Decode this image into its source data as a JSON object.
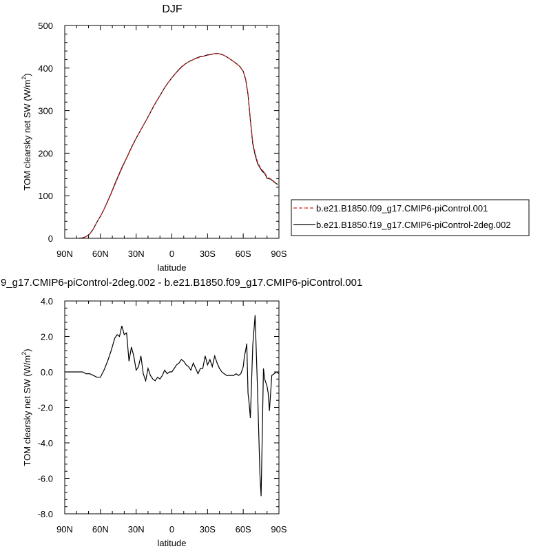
{
  "chart_data": [
    {
      "type": "line",
      "title": "DJF",
      "xlabel": "latitude",
      "ylabel": "TOM clearsky net SW (W/m",
      "ylabel_sup": "2",
      "ylabel_end": ")",
      "xlim": [
        90,
        -90
      ],
      "ylim": [
        0,
        500
      ],
      "xticks": [
        90,
        60,
        30,
        0,
        -30,
        -60,
        -90
      ],
      "xtick_labels": [
        "90N",
        "60N",
        "30N",
        "0",
        "30S",
        "60S",
        "90S"
      ],
      "yticks": [
        0,
        100,
        200,
        300,
        400,
        500
      ],
      "ytick_labels": [
        "0",
        "100",
        "200",
        "300",
        "400",
        "500"
      ],
      "legend": "right",
      "series": [
        {
          "name": "b.e21.B1850.f09_g17.CMIP6-piControl.001",
          "color": "#d62020",
          "dashed": true,
          "x": [
            78,
            75,
            72,
            69,
            66,
            63,
            60,
            57,
            54,
            51,
            48,
            45,
            42,
            39,
            36,
            33,
            30,
            27,
            24,
            21,
            18,
            15,
            12,
            9,
            6,
            3,
            0,
            -3,
            -6,
            -9,
            -12,
            -15,
            -18,
            -21,
            -24,
            -27,
            -30,
            -33,
            -36,
            -39,
            -42,
            -45,
            -48,
            -51,
            -54,
            -57,
            -60,
            -62,
            -64,
            -66,
            -68,
            -70,
            -72,
            -74,
            -76,
            -78,
            -80,
            -83,
            -86,
            -89
          ],
          "y": [
            0,
            1,
            4,
            10,
            22,
            38,
            52,
            68,
            86,
            105,
            125,
            145,
            164,
            182,
            200,
            218,
            235,
            250,
            265,
            280,
            296,
            312,
            326,
            340,
            354,
            366,
            377,
            387,
            396,
            404,
            411,
            416,
            420,
            423,
            426,
            428,
            430,
            432,
            434,
            434,
            432,
            428,
            423,
            417,
            411,
            404,
            392,
            375,
            340,
            280,
            225,
            200,
            180,
            168,
            160,
            155,
            143,
            140,
            133,
            126
          ]
        },
        {
          "name": "b.e21.B1850.f19_g17.CMIP6-piControl-2deg.002",
          "color": "#000000",
          "dashed": false,
          "x": [
            78,
            75,
            72,
            69,
            66,
            63,
            60,
            57,
            54,
            51,
            48,
            45,
            42,
            39,
            36,
            33,
            30,
            27,
            24,
            21,
            18,
            15,
            12,
            9,
            6,
            3,
            0,
            -3,
            -6,
            -9,
            -12,
            -15,
            -18,
            -21,
            -24,
            -27,
            -30,
            -33,
            -36,
            -39,
            -42,
            -45,
            -48,
            -51,
            -54,
            -57,
            -60,
            -62,
            -64,
            -66,
            -68,
            -70,
            -72,
            -74,
            -76,
            -78,
            -80,
            -83,
            -86,
            -89
          ],
          "y": [
            0,
            1,
            4,
            10,
            22,
            38,
            52,
            68,
            87,
            106,
            127,
            147,
            166,
            183,
            201,
            219,
            235,
            250,
            265,
            280,
            296,
            312,
            326,
            340,
            354,
            366,
            377,
            387,
            397,
            405,
            411,
            416,
            420,
            424,
            427,
            428,
            431,
            432,
            434,
            434,
            432,
            428,
            423,
            417,
            411,
            404,
            392,
            374,
            338,
            278,
            222,
            196,
            176,
            166,
            157,
            153,
            141,
            139,
            132,
            126
          ]
        }
      ]
    },
    {
      "type": "line",
      "title": "9_g17.CMIP6-piControl-2deg.002 - b.e21.B1850.f09_g17.CMIP6-piControl.001",
      "xlabel": "latitude",
      "ylabel": "TOM clearsky net SW (W/m",
      "ylabel_sup": "2",
      "ylabel_end": ")",
      "xlim": [
        90,
        -90
      ],
      "ylim": [
        -8,
        4
      ],
      "xticks": [
        90,
        60,
        30,
        0,
        -30,
        -60,
        -90
      ],
      "xtick_labels": [
        "90N",
        "60N",
        "30N",
        "0",
        "30S",
        "60S",
        "90S"
      ],
      "yticks": [
        4,
        2,
        0,
        -2,
        -4,
        -6,
        -8
      ],
      "ytick_labels": [
        "4.0",
        "2.0",
        "0.0",
        "-2.0",
        "-4.0",
        "-6.0",
        "-8.0"
      ],
      "series": [
        {
          "color": "#000000",
          "x": [
            90,
            78,
            75,
            72,
            69,
            66,
            63,
            60,
            57,
            54,
            51,
            48,
            46,
            44,
            42,
            40,
            38,
            36,
            34,
            32,
            30,
            28,
            26,
            24,
            22,
            20,
            18,
            16,
            14,
            12,
            10,
            8,
            6,
            4,
            2,
            0,
            -2,
            -4,
            -6,
            -8,
            -10,
            -12,
            -14,
            -16,
            -18,
            -20,
            -22,
            -24,
            -26,
            -28,
            -30,
            -32,
            -34,
            -36,
            -38,
            -40,
            -42,
            -44,
            -46,
            -48,
            -50,
            -52,
            -54,
            -56,
            -58,
            -60,
            -61,
            -62,
            -63,
            -64,
            -65,
            -66,
            -67,
            -68,
            -70,
            -72,
            -74,
            -75,
            -76,
            -77,
            -78,
            -80,
            -81,
            -82,
            -84,
            -86,
            -88,
            -90
          ],
          "y": [
            0,
            0,
            0,
            -0.1,
            -0.1,
            -0.2,
            -0.3,
            -0.3,
            0.1,
            0.6,
            1.2,
            1.9,
            2.1,
            2.0,
            2.6,
            2.1,
            2.2,
            0.6,
            1.4,
            0.9,
            0.1,
            0.3,
            0.9,
            -0.1,
            -0.5,
            0.2,
            -0.2,
            -0.4,
            -0.5,
            -0.3,
            -0.4,
            -0.2,
            0.1,
            -0.1,
            0,
            0,
            0.2,
            0.4,
            0.5,
            0.7,
            0.6,
            0.4,
            0.3,
            0.1,
            0.5,
            0.2,
            -0.1,
            0.2,
            0.2,
            0.9,
            0.4,
            0.7,
            0.3,
            0.9,
            0.5,
            0.2,
            0.0,
            -0.1,
            -0.2,
            -0.2,
            -0.2,
            -0.2,
            -0.1,
            -0.2,
            -0.1,
            0.3,
            0.9,
            1.2,
            1.6,
            -1.2,
            -1.8,
            -2.6,
            -0.5,
            1.5,
            3.2,
            -1.0,
            -5.8,
            -7.0,
            -3.5,
            0.2,
            -0.4,
            -0.8,
            -1.2,
            -2.2,
            -0.2,
            -0.1,
            0,
            -0.1
          ]
        }
      ]
    }
  ]
}
